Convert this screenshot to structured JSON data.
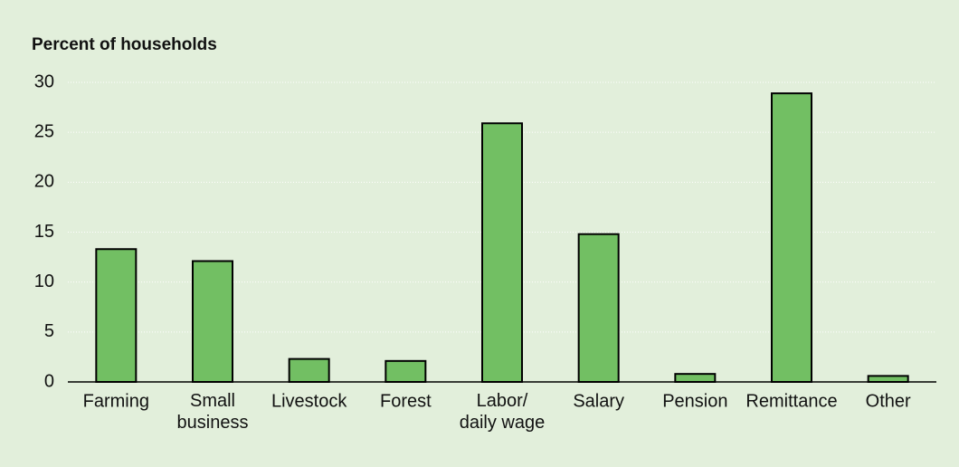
{
  "chart_data": {
    "type": "bar",
    "title": "Percent of households",
    "categories": [
      "Farming",
      "Small\nbusiness",
      "Livestock",
      "Forest",
      "Labor/\ndaily wage",
      "Salary",
      "Pension",
      "Remittance",
      "Other"
    ],
    "values": [
      13.3,
      12.1,
      2.3,
      2.1,
      25.9,
      14.8,
      0.8,
      28.9,
      0.6
    ],
    "color": "#72bf63",
    "ylim": [
      0,
      30
    ],
    "yticks": [
      0,
      5,
      10,
      15,
      20,
      25,
      30
    ],
    "grid": true
  }
}
